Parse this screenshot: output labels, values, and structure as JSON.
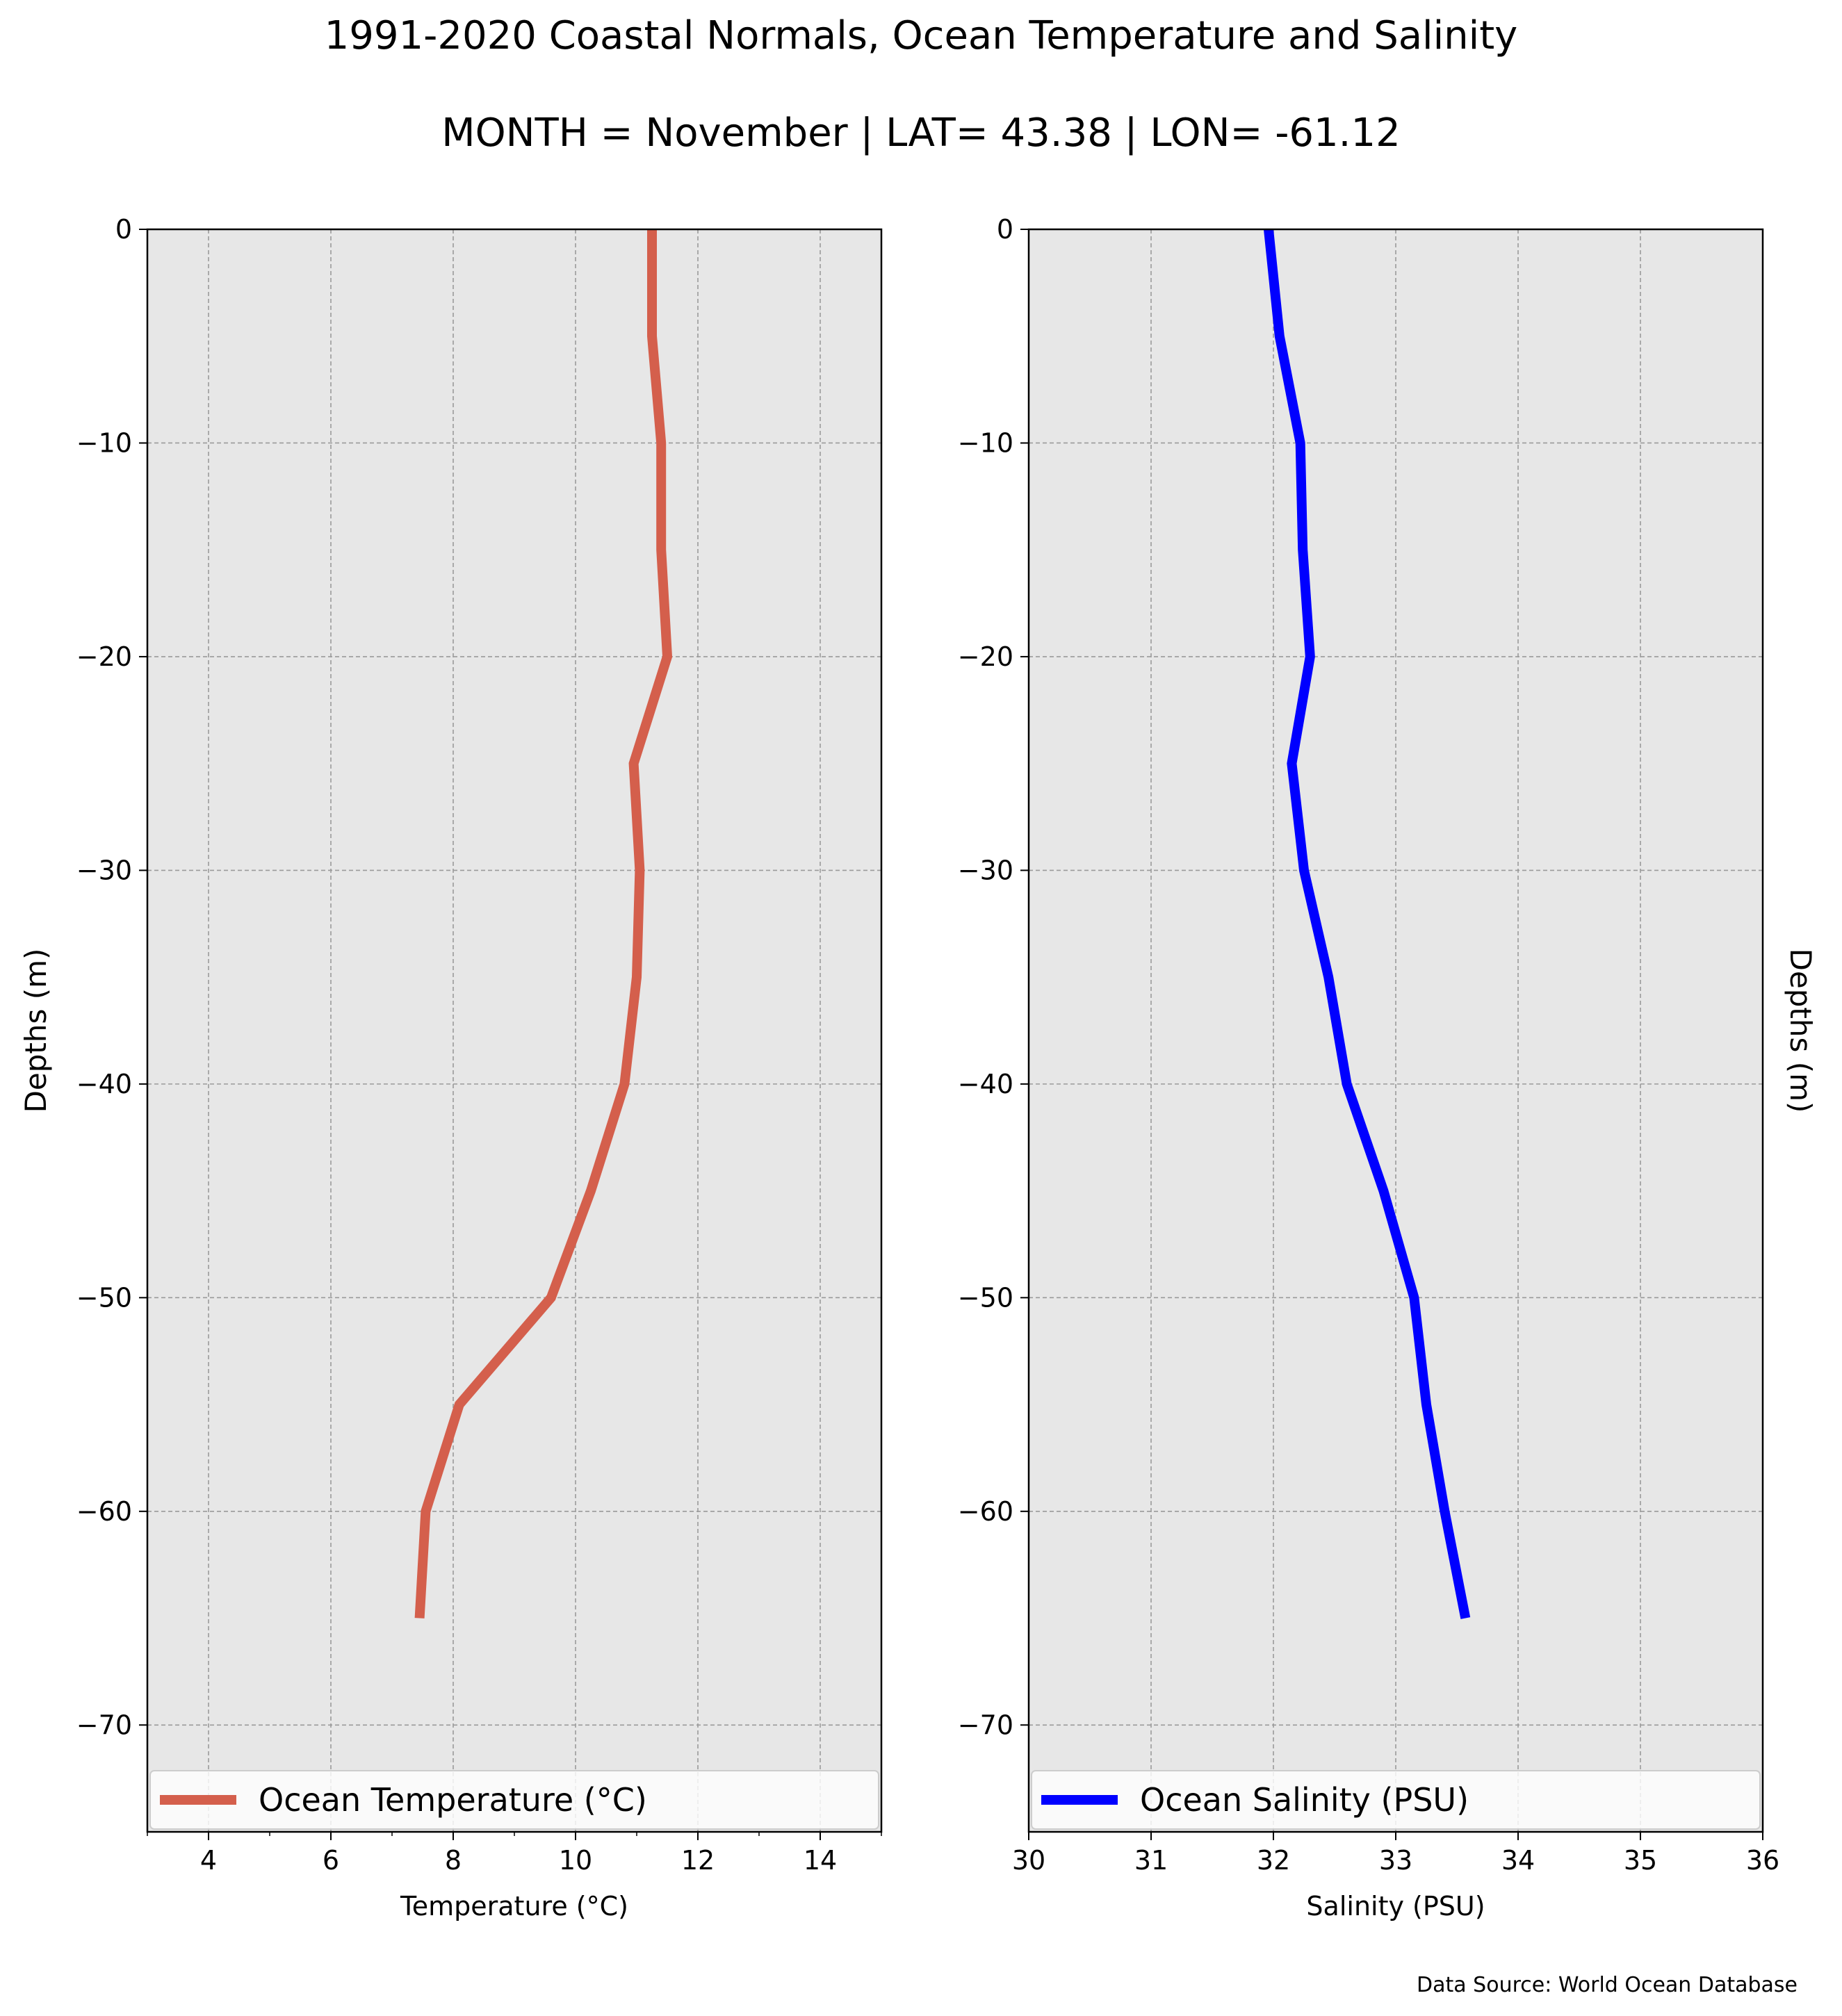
{
  "figure": {
    "title_line1": "1991-2020 Coastal Normals, Ocean Temperature and Salinity",
    "title_line2": "MONTH = November | LAT= 43.38 | LON= -61.12",
    "source_note": "Data Source: World Ocean Database"
  },
  "colors": {
    "temperature_line": "#d45f4c",
    "salinity_line": "#0000ff",
    "axes_background": "#e7e7e7",
    "grid": "#9a9a9a"
  },
  "chart_data": [
    {
      "type": "line",
      "xlabel": "Temperature ($^\\circ$C)",
      "xlabel_text": "Temperature (°C)",
      "ylabel": "Depths (m)",
      "xlim": [
        3,
        15
      ],
      "ylim": [
        -75,
        0
      ],
      "xticks": [
        4,
        6,
        8,
        10,
        12,
        14
      ],
      "yticks": [
        0,
        -10,
        -20,
        -30,
        -40,
        -50,
        -60,
        -70
      ],
      "tick_labels_x": [
        "4",
        "6",
        "8",
        "10",
        "12",
        "14"
      ],
      "tick_labels_y": [
        "0",
        "−10",
        "−20",
        "−30",
        "−40",
        "−50",
        "−60",
        "−70"
      ],
      "grid": true,
      "legend_position": "lower-center",
      "series": [
        {
          "name": "Ocean Temperature (°C)",
          "x": [
            11.25,
            11.25,
            11.4,
            11.4,
            11.5,
            10.95,
            11.05,
            11.0,
            10.8,
            10.25,
            9.6,
            8.1,
            7.55,
            7.45
          ],
          "y": [
            0,
            -5,
            -10,
            -15,
            -20,
            -25,
            -30,
            -35,
            -40,
            -45,
            -50,
            -55,
            -60,
            -65
          ]
        }
      ]
    },
    {
      "type": "line",
      "xlabel": "Salinity (PSU)",
      "ylabel": "Depths (m)",
      "xlim": [
        30,
        36
      ],
      "ylim": [
        -75,
        0
      ],
      "xticks": [
        30,
        31,
        32,
        33,
        34,
        35,
        36
      ],
      "yticks": [
        0,
        -10,
        -20,
        -30,
        -40,
        -50,
        -60,
        -70
      ],
      "tick_labels_x": [
        "30",
        "31",
        "32",
        "33",
        "34",
        "35",
        "36"
      ],
      "tick_labels_y": [
        "0",
        "−10",
        "−20",
        "−30",
        "−40",
        "−50",
        "−60",
        "−70"
      ],
      "grid": true,
      "legend_position": "lower-center",
      "series": [
        {
          "name": "Ocean Salinity (PSU)",
          "x": [
            31.96,
            32.05,
            32.22,
            32.24,
            32.3,
            32.15,
            32.25,
            32.45,
            32.6,
            32.9,
            33.15,
            33.25,
            33.4,
            33.57
          ],
          "y": [
            0,
            -5,
            -10,
            -15,
            -20,
            -25,
            -30,
            -35,
            -40,
            -45,
            -50,
            -55,
            -60,
            -65
          ]
        }
      ]
    }
  ]
}
